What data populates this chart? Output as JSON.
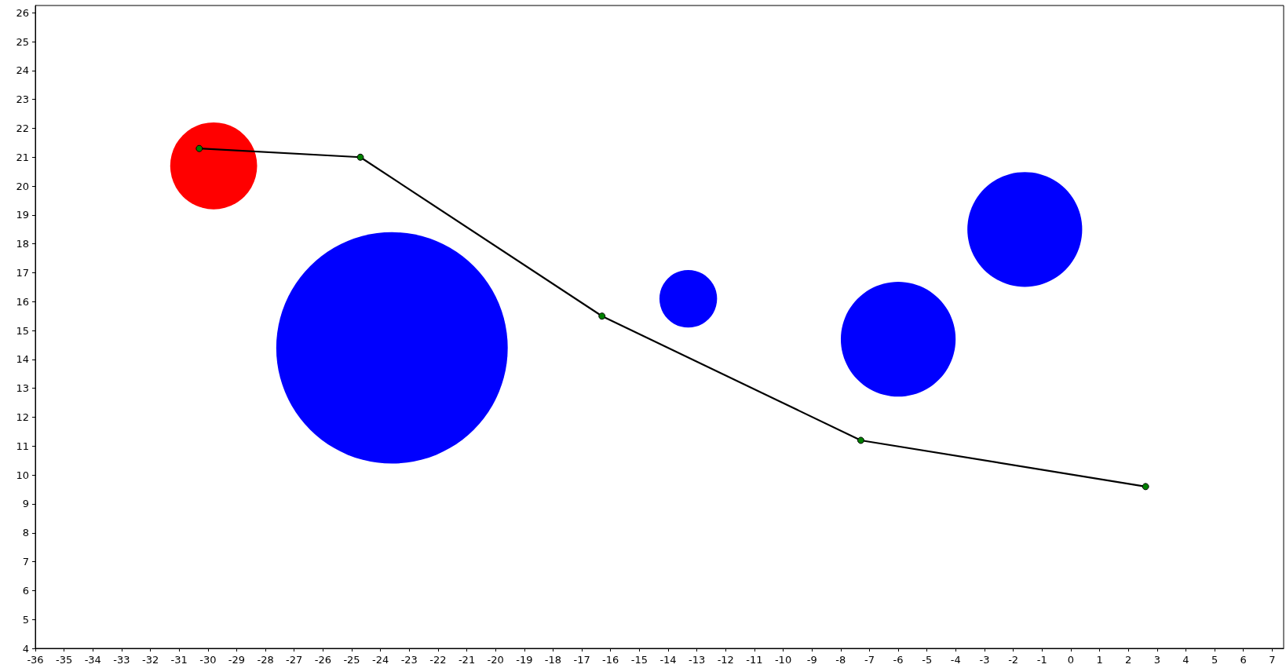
{
  "chart_data": {
    "type": "bubble",
    "series": [
      {
        "x": [
          -29.8,
          -23.6,
          -13.3,
          -6.0,
          -1.6
        ],
        "values": [
          20.7,
          14.4,
          16.1,
          14.7,
          18.5
        ],
        "sizes": [
          0.141,
          1,
          0.062,
          0.246,
          0.246
        ],
        "colors": [
          "#ff0000",
          "#0000ff",
          "#0000ff",
          "#0000ff",
          "#0000ff"
        ]
      },
      {
        "type": "line",
        "x": [
          -30.3,
          -24.7,
          -16.3,
          -7.3,
          2.6
        ],
        "values": [
          21.3,
          21.0,
          15.5,
          11.2,
          9.6
        ],
        "color": "#000000",
        "colors": [
          "#008000",
          "#008000",
          "#008000",
          "#008000",
          "#008000"
        ],
        "marker": "circle"
      }
    ],
    "xlim": [
      -36,
      7.4
    ],
    "ylim": [
      4,
      26.25
    ],
    "xticks": [
      -36,
      -35,
      -34,
      -33,
      -32,
      -31,
      -30,
      -29,
      -28,
      -27,
      -26,
      -25,
      -24,
      -23,
      -22,
      -21,
      -20,
      -19,
      -18,
      -17,
      -16,
      -15,
      -14,
      -13,
      -12,
      -11,
      -10,
      -9,
      -8,
      -7,
      -6,
      -5,
      -4,
      -3,
      -2,
      -1,
      0,
      1,
      2,
      3,
      4,
      5,
      6,
      7
    ],
    "yticks": [
      4,
      5,
      6,
      7,
      8,
      9,
      10,
      11,
      12,
      13,
      14,
      15,
      16,
      17,
      18,
      19,
      20,
      21,
      22,
      23,
      24,
      25,
      26
    ],
    "grid": false
  }
}
